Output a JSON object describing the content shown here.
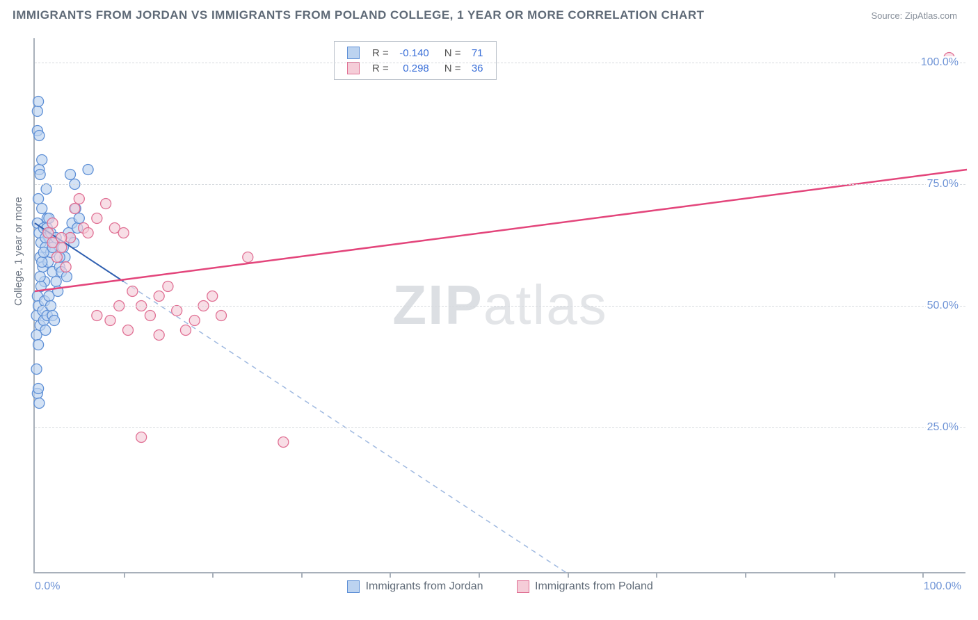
{
  "header": {
    "title": "IMMIGRANTS FROM JORDAN VS IMMIGRANTS FROM POLAND COLLEGE, 1 YEAR OR MORE CORRELATION CHART",
    "source_prefix": "Source: ",
    "source_name": "ZipAtlas.com"
  },
  "watermark": {
    "part1": "ZIP",
    "part2": "atlas"
  },
  "axes": {
    "y_title": "College, 1 year or more",
    "x_min": 0,
    "x_max": 105,
    "y_min": -5,
    "y_max": 105,
    "y_ticks": [
      {
        "v": 25,
        "label": "25.0%"
      },
      {
        "v": 50,
        "label": "50.0%"
      },
      {
        "v": 75,
        "label": "75.0%"
      },
      {
        "v": 100,
        "label": "100.0%"
      }
    ],
    "x_ticks_minor": [
      10,
      20,
      30,
      40,
      50,
      60,
      70,
      80,
      90,
      100
    ],
    "x_labels": [
      {
        "v": 0,
        "label": "0.0%",
        "align": "left"
      },
      {
        "v": 100,
        "label": "100.0%",
        "align": "right"
      }
    ],
    "grid_color": "#d6dade",
    "axis_color": "#a8b0ba"
  },
  "series": [
    {
      "id": "jordan",
      "label": "Immigrants from Jordan",
      "R": "-0.140",
      "N": "71",
      "marker_fill": "#bcd3f0",
      "marker_stroke": "#5d8fd6",
      "marker_opacity": 0.65,
      "marker_r": 7.5,
      "line_color": "#2f5fb0",
      "line_width": 2,
      "dash_color": "#9fb9e0",
      "trend": {
        "x1": 0,
        "y1": 67,
        "x2": 60,
        "y2": -5,
        "solid_until_x": 10
      },
      "points": [
        [
          0.3,
          67
        ],
        [
          0.5,
          65
        ],
        [
          0.7,
          63
        ],
        [
          0.8,
          70
        ],
        [
          0.6,
          60
        ],
        [
          0.4,
          72
        ],
        [
          0.9,
          58
        ],
        [
          1.0,
          66
        ],
        [
          1.2,
          62
        ],
        [
          1.1,
          55
        ],
        [
          1.3,
          74
        ],
        [
          1.4,
          68
        ],
        [
          0.5,
          78
        ],
        [
          0.6,
          77
        ],
        [
          0.8,
          80
        ],
        [
          1.5,
          59
        ],
        [
          1.6,
          64
        ],
        [
          1.8,
          61
        ],
        [
          2.0,
          57
        ],
        [
          2.2,
          63
        ],
        [
          0.3,
          90
        ],
        [
          0.4,
          92
        ],
        [
          0.3,
          86
        ],
        [
          0.5,
          85
        ],
        [
          0.2,
          48
        ],
        [
          0.3,
          52
        ],
        [
          0.4,
          50
        ],
        [
          0.6,
          46
        ],
        [
          0.7,
          54
        ],
        [
          0.9,
          49
        ],
        [
          1.0,
          47
        ],
        [
          1.1,
          51
        ],
        [
          1.2,
          45
        ],
        [
          1.4,
          48
        ],
        [
          1.6,
          52
        ],
        [
          1.8,
          50
        ],
        [
          2.0,
          48
        ],
        [
          2.2,
          47
        ],
        [
          2.4,
          55
        ],
        [
          2.6,
          53
        ],
        [
          2.8,
          58
        ],
        [
          3.0,
          57
        ],
        [
          3.2,
          62
        ],
        [
          3.4,
          60
        ],
        [
          3.6,
          56
        ],
        [
          3.8,
          65
        ],
        [
          4.0,
          64
        ],
        [
          4.2,
          67
        ],
        [
          4.4,
          63
        ],
        [
          4.6,
          70
        ],
        [
          4.8,
          66
        ],
        [
          5.0,
          68
        ],
        [
          0.2,
          37
        ],
        [
          0.3,
          32
        ],
        [
          0.5,
          30
        ],
        [
          0.4,
          33
        ],
        [
          0.2,
          44
        ],
        [
          0.4,
          42
        ],
        [
          0.6,
          56
        ],
        [
          0.8,
          59
        ],
        [
          1.0,
          61
        ],
        [
          1.2,
          64
        ],
        [
          1.4,
          66
        ],
        [
          1.6,
          68
        ],
        [
          1.8,
          65
        ],
        [
          2.0,
          62
        ],
        [
          2.4,
          64
        ],
        [
          2.8,
          60
        ],
        [
          6.0,
          78
        ],
        [
          4.5,
          75
        ],
        [
          4.0,
          77
        ]
      ]
    },
    {
      "id": "poland",
      "label": "Immigrants from Poland",
      "R": "0.298",
      "N": "36",
      "marker_fill": "#f5cdd8",
      "marker_stroke": "#e06f93",
      "marker_opacity": 0.65,
      "marker_r": 7.5,
      "line_color": "#e3457b",
      "line_width": 2.5,
      "trend": {
        "x1": 0,
        "y1": 53,
        "x2": 105,
        "y2": 78
      },
      "points": [
        [
          1.5,
          65
        ],
        [
          2.0,
          63
        ],
        [
          2.5,
          60
        ],
        [
          3.0,
          62
        ],
        [
          3.5,
          58
        ],
        [
          4.0,
          64
        ],
        [
          4.5,
          70
        ],
        [
          5.0,
          72
        ],
        [
          5.5,
          66
        ],
        [
          6.0,
          65
        ],
        [
          7.0,
          68
        ],
        [
          8.0,
          71
        ],
        [
          9.0,
          66
        ],
        [
          10.0,
          65
        ],
        [
          11.0,
          53
        ],
        [
          12.0,
          50
        ],
        [
          13.0,
          48
        ],
        [
          14.0,
          52
        ],
        [
          15.0,
          54
        ],
        [
          16.0,
          49
        ],
        [
          17.0,
          45
        ],
        [
          18.0,
          47
        ],
        [
          19.0,
          50
        ],
        [
          20.0,
          52
        ],
        [
          21.0,
          48
        ],
        [
          7.0,
          48
        ],
        [
          8.5,
          47
        ],
        [
          9.5,
          50
        ],
        [
          10.5,
          45
        ],
        [
          14.0,
          44
        ],
        [
          24.0,
          60
        ],
        [
          12.0,
          23
        ],
        [
          28.0,
          22
        ],
        [
          103.0,
          101
        ],
        [
          2.0,
          67
        ],
        [
          3.0,
          64
        ]
      ]
    }
  ],
  "legend_top": {
    "R_label": "R",
    "N_label": "N",
    "eq": "="
  },
  "colors": {
    "text_muted": "#5f6a77",
    "value": "#3a6fd8"
  }
}
